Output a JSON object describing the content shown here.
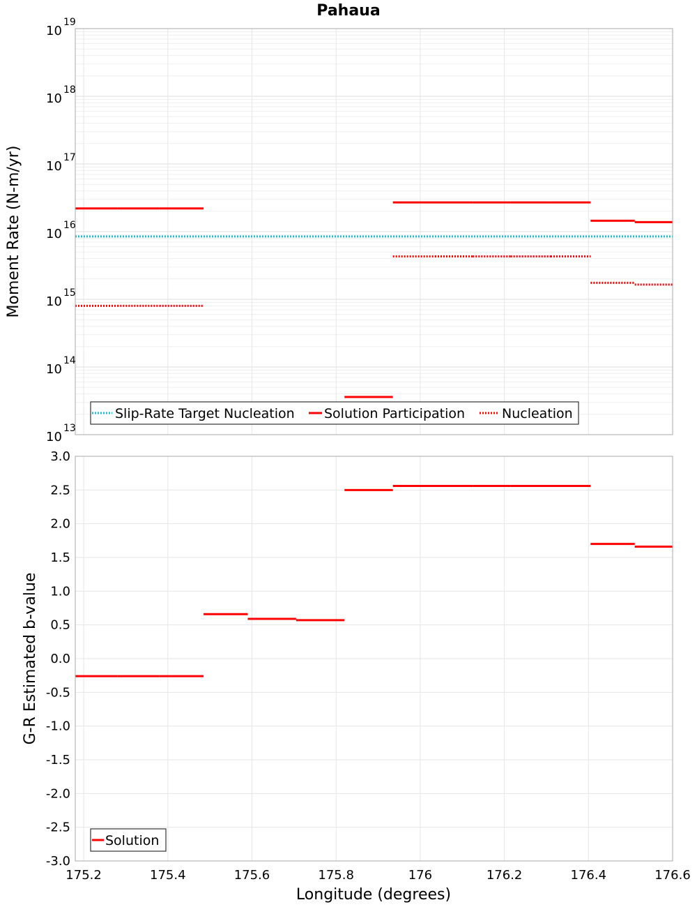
{
  "chart_data": [
    {
      "type": "line",
      "title": "Pahaua",
      "ylabel": "Moment Rate (N-m/yr)",
      "yscale": "log",
      "ylim": [
        10000000000000.0,
        1e+19
      ],
      "xlim": [
        175.18,
        176.6
      ],
      "y_ticks": [
        {
          "base": "10",
          "exp": "13"
        },
        {
          "base": "10",
          "exp": "14"
        },
        {
          "base": "10",
          "exp": "15"
        },
        {
          "base": "10",
          "exp": "16"
        },
        {
          "base": "10",
          "exp": "17"
        },
        {
          "base": "10",
          "exp": "18"
        },
        {
          "base": "10",
          "exp": "19"
        }
      ],
      "legend": {
        "position": "bottom-left",
        "entries": [
          "Slip-Rate Target Nucleation",
          "Solution Participation",
          "Nucleation"
        ]
      },
      "series": [
        {
          "name": "Slip-Rate Target Nucleation",
          "color": "#22bbcc",
          "style": "dotted",
          "segments": [
            {
              "x0": 175.18,
              "x1": 176.6,
              "y": 8500000000000000.0
            }
          ]
        },
        {
          "name": "Solution Participation",
          "color": "#ff0000",
          "style": "solid",
          "segments": [
            {
              "x0": 175.18,
              "x1": 175.28,
              "y": 2.2e+16
            },
            {
              "x0": 175.28,
              "x1": 175.38,
              "y": 2.2e+16
            },
            {
              "x0": 175.38,
              "x1": 175.485,
              "y": 2.2e+16
            },
            {
              "x0": 175.82,
              "x1": 175.935,
              "y": 36000000000000.0
            },
            {
              "x0": 175.935,
              "x1": 176.035,
              "y": 2.7e+16
            },
            {
              "x0": 176.035,
              "x1": 176.125,
              "y": 2.7e+16
            },
            {
              "x0": 176.125,
              "x1": 176.215,
              "y": 2.7e+16
            },
            {
              "x0": 176.215,
              "x1": 176.31,
              "y": 2.7e+16
            },
            {
              "x0": 176.31,
              "x1": 176.405,
              "y": 2.7e+16
            },
            {
              "x0": 176.405,
              "x1": 176.51,
              "y": 1.45e+16
            },
            {
              "x0": 176.51,
              "x1": 176.6,
              "y": 1.38e+16
            }
          ]
        },
        {
          "name": "Nucleation",
          "color": "#ff0000",
          "style": "dotted",
          "segments": [
            {
              "x0": 175.18,
              "x1": 175.28,
              "y": 800000000000000.0
            },
            {
              "x0": 175.28,
              "x1": 175.38,
              "y": 800000000000000.0
            },
            {
              "x0": 175.38,
              "x1": 175.485,
              "y": 800000000000000.0
            },
            {
              "x0": 175.935,
              "x1": 176.035,
              "y": 4300000000000000.0
            },
            {
              "x0": 176.035,
              "x1": 176.125,
              "y": 4300000000000000.0
            },
            {
              "x0": 176.125,
              "x1": 176.215,
              "y": 4300000000000000.0
            },
            {
              "x0": 176.215,
              "x1": 176.31,
              "y": 4300000000000000.0
            },
            {
              "x0": 176.31,
              "x1": 176.405,
              "y": 4300000000000000.0
            },
            {
              "x0": 176.405,
              "x1": 176.51,
              "y": 1750000000000000.0
            },
            {
              "x0": 176.51,
              "x1": 176.6,
              "y": 1650000000000000.0
            }
          ]
        }
      ]
    },
    {
      "type": "line",
      "title": "",
      "xlabel": "Longitude (degrees)",
      "ylabel": "G-R Estimated b-value",
      "ylim": [
        -3.0,
        3.0
      ],
      "xlim": [
        175.18,
        176.6
      ],
      "x_ticks": [
        "175.2",
        "175.4",
        "175.6",
        "175.8",
        "176",
        "176.2",
        "176.4",
        "176.6"
      ],
      "y_ticks": [
        "3.0",
        "2.5",
        "2.0",
        "1.5",
        "1.0",
        "0.5",
        "0.0",
        "-0.5",
        "-1.0",
        "-1.5",
        "-2.0",
        "-2.5",
        "-3.0"
      ],
      "legend": {
        "position": "bottom-left",
        "entries": [
          "Solution"
        ]
      },
      "series": [
        {
          "name": "Solution",
          "color": "#ff0000",
          "style": "solid",
          "segments": [
            {
              "x0": 175.18,
              "x1": 175.28,
              "y": -0.26
            },
            {
              "x0": 175.28,
              "x1": 175.38,
              "y": -0.26
            },
            {
              "x0": 175.38,
              "x1": 175.485,
              "y": -0.26
            },
            {
              "x0": 175.485,
              "x1": 175.59,
              "y": 0.66
            },
            {
              "x0": 175.59,
              "x1": 175.705,
              "y": 0.59
            },
            {
              "x0": 175.705,
              "x1": 175.82,
              "y": 0.57
            },
            {
              "x0": 175.82,
              "x1": 175.935,
              "y": 2.5
            },
            {
              "x0": 175.935,
              "x1": 176.035,
              "y": 2.56
            },
            {
              "x0": 176.035,
              "x1": 176.125,
              "y": 2.56
            },
            {
              "x0": 176.125,
              "x1": 176.215,
              "y": 2.56
            },
            {
              "x0": 176.215,
              "x1": 176.31,
              "y": 2.56
            },
            {
              "x0": 176.31,
              "x1": 176.405,
              "y": 2.56
            },
            {
              "x0": 176.405,
              "x1": 176.51,
              "y": 1.7
            },
            {
              "x0": 176.51,
              "x1": 176.6,
              "y": 1.66
            }
          ]
        }
      ]
    }
  ]
}
